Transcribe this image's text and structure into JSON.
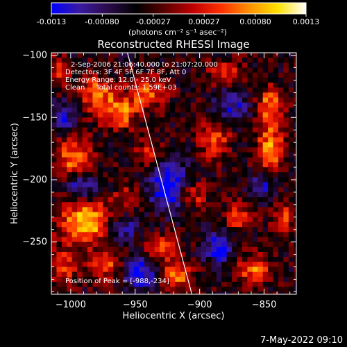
{
  "colorbar": {
    "ticks": [
      "-0.0013",
      "-0.00080",
      "-0.00027",
      "0.00027",
      "0.00080",
      "0.0013"
    ],
    "unit_label": "(photons cm⁻² s⁻¹ asec⁻²)",
    "stops": [
      "#0000ff",
      "#3a1aa0",
      "#2b0b4a",
      "#000000",
      "#5a0000",
      "#c00000",
      "#ff3000",
      "#ff9000",
      "#ffe000",
      "#ffffff"
    ]
  },
  "chart_data": {
    "type": "heatmap",
    "title": "Reconstructed RHESSI Image",
    "xlabel": "Heliocentric X (arcsec)",
    "ylabel": "Heliocentric Y (arcsec)",
    "xlim": [
      -1015,
      -825
    ],
    "ylim": [
      -292,
      -98
    ],
    "x_ticks": [
      -1000,
      -950,
      -900,
      -850
    ],
    "y_ticks": [
      -100,
      -150,
      -200,
      -250
    ],
    "x_tick_labels": [
      "−1000",
      "−950",
      "−900",
      "−850"
    ],
    "y_tick_labels": [
      "−100",
      "−150",
      "−200",
      "−250"
    ],
    "annotations": {
      "time": "2-Sep-2006 21:06:40.000 to 21:07:20.000",
      "detectors": "Detectors: 3F 4F 5F 6F 7F 8F, Att 0",
      "energy": "Energy Range: 12.0 - 25.0 keV",
      "method": "Clean     Total counts: 1.59E+03",
      "peak": "Position of Peak = [-988,-234]"
    },
    "peak": [
      -988,
      -234
    ],
    "limb_line": [
      [
        -956,
        -98
      ],
      [
        -906,
        -292
      ]
    ],
    "bright_sources": [
      {
        "x": -988,
        "y": -234,
        "value": 1.0,
        "sx": 14,
        "sy": 13
      },
      {
        "x": -918,
        "y": -276,
        "value": 0.85,
        "sx": 8,
        "sy": 7
      },
      {
        "x": -962,
        "y": -146,
        "value": 0.8,
        "sx": 10,
        "sy": 9
      },
      {
        "x": -980,
        "y": -130,
        "value": 0.7,
        "sx": 10,
        "sy": 10
      },
      {
        "x": -998,
        "y": -182,
        "value": 0.75,
        "sx": 10,
        "sy": 12
      },
      {
        "x": -888,
        "y": -168,
        "value": 0.7,
        "sx": 8,
        "sy": 10
      },
      {
        "x": -845,
        "y": -175,
        "value": 0.85,
        "sx": 7,
        "sy": 14
      },
      {
        "x": -845,
        "y": -140,
        "value": 0.75,
        "sx": 7,
        "sy": 10
      },
      {
        "x": -940,
        "y": -130,
        "value": 0.6,
        "sx": 10,
        "sy": 9
      },
      {
        "x": -858,
        "y": -272,
        "value": 0.7,
        "sx": 9,
        "sy": 8
      },
      {
        "x": -970,
        "y": -270,
        "value": 0.6,
        "sx": 10,
        "sy": 9
      },
      {
        "x": -1005,
        "y": -270,
        "value": 0.55,
        "sx": 8,
        "sy": 9
      },
      {
        "x": -930,
        "y": -255,
        "value": 0.6,
        "sx": 9,
        "sy": 8
      },
      {
        "x": -940,
        "y": -180,
        "value": 0.5,
        "sx": 8,
        "sy": 8
      },
      {
        "x": -955,
        "y": -215,
        "value": 0.45,
        "sx": 8,
        "sy": 7
      },
      {
        "x": -905,
        "y": -212,
        "value": 0.55,
        "sx": 7,
        "sy": 7
      },
      {
        "x": -870,
        "y": -230,
        "value": 0.5,
        "sx": 8,
        "sy": 8
      },
      {
        "x": -835,
        "y": -230,
        "value": 0.55,
        "sx": 6,
        "sy": 10
      },
      {
        "x": -880,
        "y": -115,
        "value": 0.5,
        "sx": 9,
        "sy": 8
      },
      {
        "x": -1010,
        "y": -115,
        "value": 0.5,
        "sx": 6,
        "sy": 9
      }
    ],
    "dark_regions": [
      {
        "x": -925,
        "y": -205,
        "value": -0.8,
        "sx": 11,
        "sy": 14
      },
      {
        "x": -948,
        "y": -275,
        "value": -0.85,
        "sx": 10,
        "sy": 9
      },
      {
        "x": -885,
        "y": -255,
        "value": -0.75,
        "sx": 8,
        "sy": 9
      },
      {
        "x": -990,
        "y": -205,
        "value": -0.7,
        "sx": 9,
        "sy": 8
      },
      {
        "x": -875,
        "y": -140,
        "value": -0.6,
        "sx": 9,
        "sy": 10
      },
      {
        "x": -1005,
        "y": -150,
        "value": -0.55,
        "sx": 7,
        "sy": 10
      },
      {
        "x": -850,
        "y": -205,
        "value": -0.55,
        "sx": 7,
        "sy": 8
      },
      {
        "x": -960,
        "y": -240,
        "value": -0.6,
        "sx": 8,
        "sy": 8
      }
    ]
  },
  "timestamp": "7-May-2022 09:10"
}
